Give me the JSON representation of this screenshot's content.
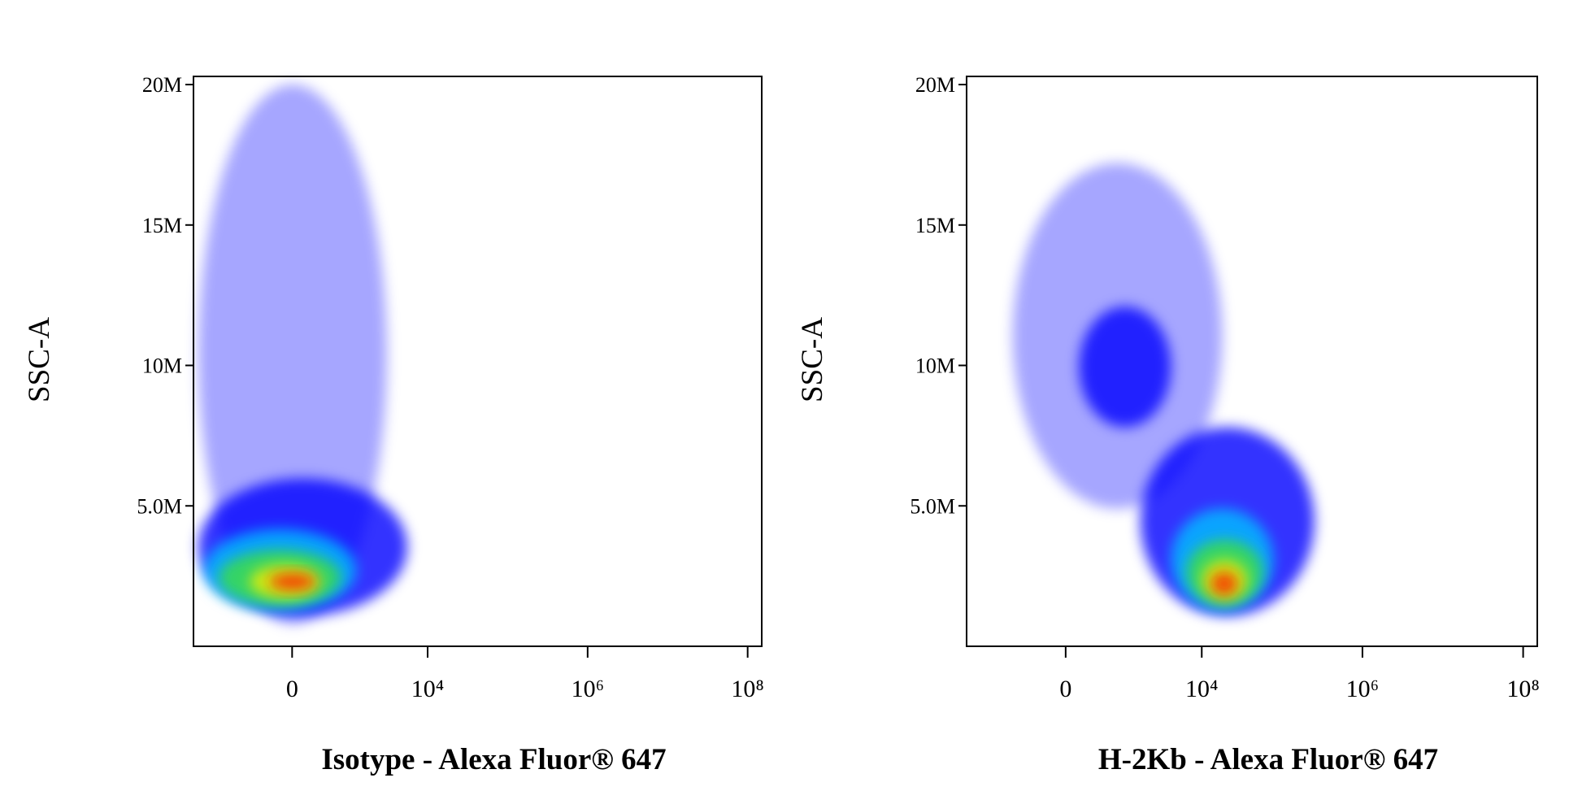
{
  "chart_data": [
    {
      "type": "density",
      "x_label": "Isotype - Alexa Fluor® 647",
      "y_label": "SSC-A",
      "xscale": "biexponential",
      "x_linear_width": 405,
      "xlim": [
        -3450,
        150000000
      ],
      "ylim": [
        0,
        20290000
      ],
      "xticks": [
        0,
        {
          "value": 10000,
          "label": "10⁴"
        },
        {
          "value": 1000000,
          "label": "10⁶"
        },
        {
          "value": 100000000,
          "label": "10⁸"
        }
      ],
      "yticks": [
        {
          "value": 5000000,
          "label": "5.0M"
        },
        {
          "value": 10000000,
          "label": "10M"
        },
        {
          "value": 15000000,
          "label": "15M"
        },
        {
          "value": 20000000,
          "label": "20M"
        }
      ],
      "populations": [
        {
          "x_range": [
            -3000,
            3080
          ],
          "y_range": [
            800000,
            20000000
          ],
          "color": "#0000ff"
        },
        {
          "x_range": [
            -3000,
            5560
          ],
          "y_range": [
            1090000,
            5980000
          ],
          "color": "#0000ff"
        },
        {
          "x_range": [
            -2580,
            1250
          ],
          "y_range": [
            1270000,
            4170000
          ],
          "color": "#00c0ff"
        },
        {
          "x_range": [
            -1650,
            777
          ],
          "y_range": [
            1450000,
            3440000
          ],
          "color": "#40e040"
        },
        {
          "x_range": [
            -630,
            372
          ],
          "y_range": [
            1700000,
            2900000
          ],
          "color": "#f0f000"
        },
        {
          "x_range": [
            -280,
            294
          ],
          "y_range": [
            1990000,
            2610000
          ],
          "color": "#ff2000"
        }
      ]
    },
    {
      "type": "density",
      "x_label": "H-2Kb - Alexa Fluor® 647",
      "y_label": "SSC-A",
      "xscale": "biexponential",
      "x_linear_width": 405,
      "xlim": [
        -3450,
        150000000
      ],
      "ylim": [
        0,
        20290000
      ],
      "xticks": [
        0,
        {
          "value": 10000,
          "label": "10⁴"
        },
        {
          "value": 1000000,
          "label": "10⁶"
        },
        {
          "value": 100000000,
          "label": "10⁸"
        }
      ],
      "yticks": [
        {
          "value": 5000000,
          "label": "5.0M"
        },
        {
          "value": 10000000,
          "label": "10M"
        },
        {
          "value": 15000000,
          "label": "15M"
        },
        {
          "value": 20000000,
          "label": "20M"
        }
      ],
      "populations": [
        {
          "x_range": [
            -880,
            18000
          ],
          "y_range": [
            4900000,
            17200000
          ],
          "color": "#0000ff"
        },
        {
          "x_range": [
            158,
            4130
          ],
          "y_range": [
            7800000,
            12100000
          ],
          "color": "#0000ff"
        },
        {
          "x_range": [
            1700,
            252000
          ],
          "y_range": [
            1090000,
            7800000
          ],
          "color": "#0000ff"
        },
        {
          "x_range": [
            4130,
            77900
          ],
          "y_range": [
            1270000,
            4900000
          ],
          "color": "#00c0ff"
        },
        {
          "x_range": [
            6440,
            58000
          ],
          "y_range": [
            1450000,
            3800000
          ],
          "color": "#40e040"
        },
        {
          "x_range": [
            10000,
            37300
          ],
          "y_range": [
            1630000,
            3080000
          ],
          "color": "#f0f000"
        },
        {
          "x_range": [
            13000,
            27900
          ],
          "y_range": [
            1810000,
            2650000
          ],
          "color": "#ff2000"
        }
      ]
    }
  ]
}
